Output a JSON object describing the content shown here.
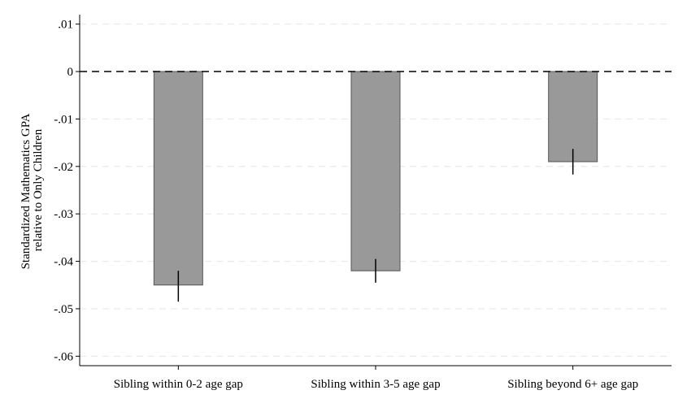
{
  "chart_data": {
    "type": "bar",
    "title": "",
    "xlabel": "",
    "ylabel": "Standardized Mathematics GPA relative to Only Children",
    "ylabel_lines": [
      "Standardized Mathematics GPA",
      "relative to Only Children"
    ],
    "categories": [
      "Sibling within 0-2 age gap",
      "Sibling within 3-5 age gap",
      "Sibling beyond 6+ age gap"
    ],
    "values": [
      -0.045,
      -0.042,
      -0.019
    ],
    "error_bars": [
      {
        "low": -0.0485,
        "high": -0.042
      },
      {
        "low": -0.0445,
        "high": -0.0395
      },
      {
        "low": -0.0217,
        "high": -0.0163
      }
    ],
    "ylim": [
      -0.062,
      0.012
    ],
    "yticks": [
      0.01,
      0,
      -0.01,
      -0.02,
      -0.03,
      -0.04,
      -0.05,
      -0.06
    ],
    "ytick_labels": [
      ".01",
      "0",
      "-.01",
      "-.02",
      "-.03",
      "-.04",
      "-.05",
      "-.06"
    ],
    "reference_line": {
      "y": 0,
      "style": "dashed"
    },
    "grid": true,
    "legend": "none",
    "colors": {
      "bar_fill": "#999999",
      "bar_stroke": "#555555",
      "error_bar": "#000000",
      "grid": "#e6e6e6",
      "reference_line": "#000000"
    }
  }
}
